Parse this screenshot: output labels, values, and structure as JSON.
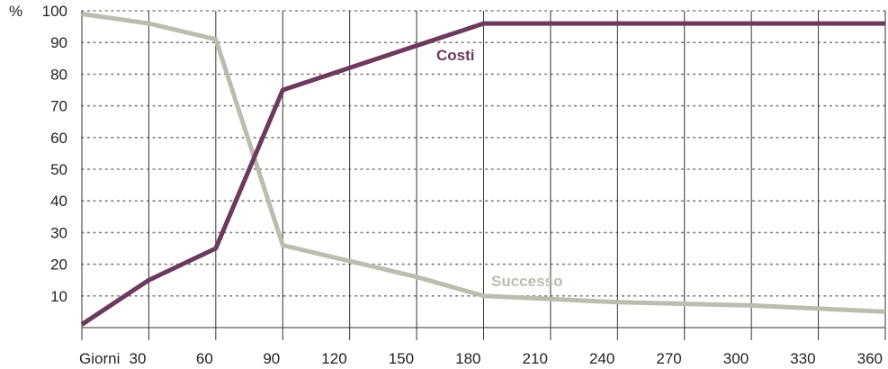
{
  "chart_data": {
    "type": "line",
    "y_unit_label": "%",
    "x_prefix_label": "Giorni",
    "x": [
      0,
      30,
      60,
      90,
      120,
      150,
      180,
      210,
      240,
      270,
      300,
      330,
      360
    ],
    "x_tick_labels": [
      "30",
      "60",
      "90",
      "120",
      "150",
      "180",
      "210",
      "240",
      "270",
      "300",
      "330",
      "360"
    ],
    "y_ticks": [
      10,
      20,
      30,
      40,
      50,
      60,
      70,
      80,
      90,
      100
    ],
    "xlim": [
      0,
      360
    ],
    "ylim": [
      0,
      100
    ],
    "grid": {
      "x": "solid",
      "y": "dotted"
    },
    "series": [
      {
        "name": "Costi",
        "color": "#6b3a5c",
        "points": [
          [
            0,
            1
          ],
          [
            30,
            15
          ],
          [
            60,
            25
          ],
          [
            90,
            75
          ],
          [
            180,
            96
          ],
          [
            360,
            96
          ]
        ]
      },
      {
        "name": "Successo",
        "color": "#bdbcb0",
        "points": [
          [
            0,
            99
          ],
          [
            30,
            96
          ],
          [
            60,
            91
          ],
          [
            90,
            26
          ],
          [
            120,
            21
          ],
          [
            150,
            16
          ],
          [
            180,
            10
          ],
          [
            240,
            8
          ],
          [
            300,
            7
          ],
          [
            360,
            5
          ]
        ]
      }
    ]
  }
}
